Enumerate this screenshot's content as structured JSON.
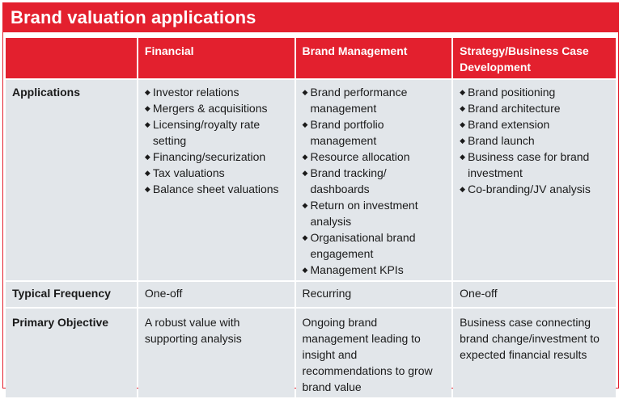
{
  "title": "Brand valuation applications",
  "columns": [
    "",
    "Financial",
    "Brand Management",
    "Strategy/Business Case Development"
  ],
  "rows": {
    "applications": {
      "label": "Applications",
      "financial": [
        "Investor relations",
        "Mergers & acquisitions",
        "Licensing/royalty rate setting",
        "Financing/securization",
        "Tax valuations",
        "Balance sheet valuations"
      ],
      "brand_management": [
        "Brand performance management",
        "Brand portfolio management",
        "Resource allocation",
        "Brand tracking/ dashboards",
        "Return on investment analysis",
        "Organisational brand engagement",
        "Management KPIs"
      ],
      "strategy": [
        "Brand positioning",
        "Brand architecture",
        "Brand extension",
        "Brand launch",
        "Business case for brand investment",
        "Co-branding/JV analysis"
      ]
    },
    "frequency": {
      "label": "Typical Frequency",
      "financial": "One-off",
      "brand_management": "Recurring",
      "strategy": "One-off"
    },
    "objective": {
      "label": "Primary Objective",
      "financial": "A robust value with supporting analysis",
      "brand_management": "Ongoing brand management leading to insight and recommendations to grow brand value",
      "strategy": "Business case connecting brand change/investment to expected financial results"
    }
  }
}
